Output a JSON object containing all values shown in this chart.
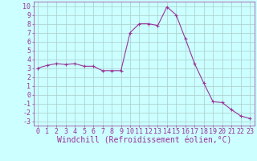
{
  "x": [
    0,
    1,
    2,
    3,
    4,
    5,
    6,
    7,
    8,
    9,
    10,
    11,
    12,
    13,
    14,
    15,
    16,
    17,
    18,
    19,
    20,
    21,
    22,
    23
  ],
  "y": [
    3.0,
    3.3,
    3.5,
    3.4,
    3.5,
    3.2,
    3.2,
    2.7,
    2.7,
    2.7,
    7.0,
    8.0,
    8.0,
    7.8,
    9.9,
    9.0,
    6.3,
    3.5,
    1.3,
    -0.8,
    -0.9,
    -1.7,
    -2.4,
    -2.7
  ],
  "line_color": "#993399",
  "marker": "+",
  "bg_color": "#ccffff",
  "grid_color": "#aacccc",
  "xlabel": "Windchill (Refroidissement éolien,°C)",
  "ylabel_ticks": [
    10,
    9,
    8,
    7,
    6,
    5,
    4,
    3,
    2,
    1,
    0,
    -1,
    -2,
    -3
  ],
  "ylim": [
    -3.5,
    10.5
  ],
  "xlim": [
    -0.5,
    23.5
  ],
  "font_color": "#993399",
  "tick_fontsize": 6,
  "xlabel_fontsize": 7
}
